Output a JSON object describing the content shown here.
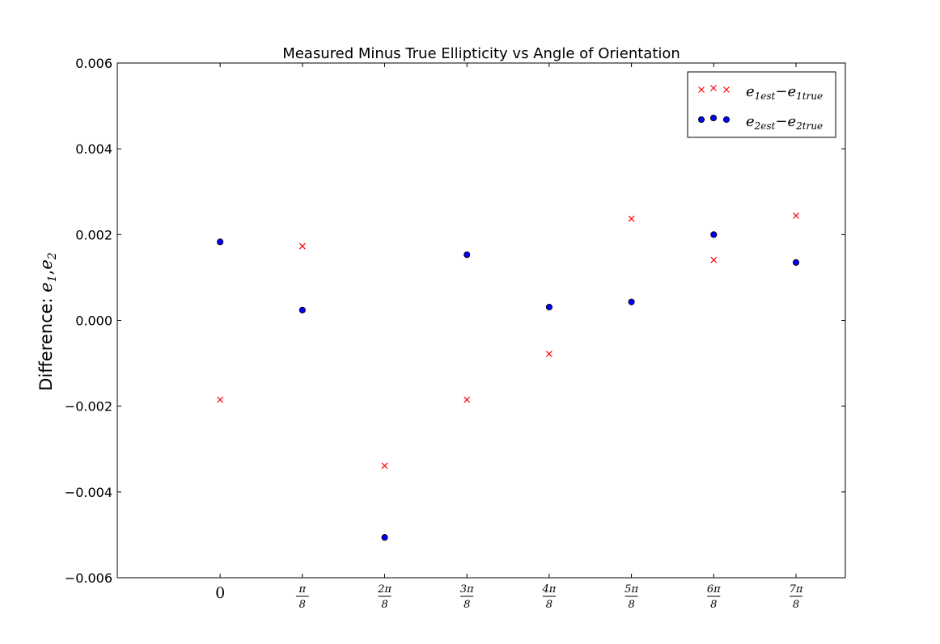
{
  "chart_data": {
    "type": "scatter",
    "title": "Measured Minus True Ellipticity vs Angle of Orientation",
    "ylabel": {
      "prefix": "Difference: ",
      "var1": "e",
      "sub1": "1",
      "sep": ",",
      "var2": "e",
      "sub2": "2"
    },
    "xlabel": "",
    "xlim": [
      -1.25,
      7.6
    ],
    "ylim": [
      -0.006,
      0.006
    ],
    "x_ticks": [
      {
        "value": 0,
        "label": "0"
      },
      {
        "value": 1,
        "numerator": "π",
        "denominator": "8"
      },
      {
        "value": 2,
        "numerator": "2π",
        "denominator": "8"
      },
      {
        "value": 3,
        "numerator": "3π",
        "denominator": "8"
      },
      {
        "value": 4,
        "numerator": "4π",
        "denominator": "8"
      },
      {
        "value": 5,
        "numerator": "5π",
        "denominator": "8"
      },
      {
        "value": 6,
        "numerator": "6π",
        "denominator": "8"
      },
      {
        "value": 7,
        "numerator": "7π",
        "denominator": "8"
      }
    ],
    "y_ticks": [
      {
        "value": 0.006,
        "label": "0.006"
      },
      {
        "value": 0.004,
        "label": "0.004"
      },
      {
        "value": 0.002,
        "label": "0.002"
      },
      {
        "value": 0.0,
        "label": "0.000"
      },
      {
        "value": -0.002,
        "label": "−0.002"
      },
      {
        "value": -0.004,
        "label": "−0.004"
      },
      {
        "value": -0.006,
        "label": "−0.006"
      }
    ],
    "legend_position": "top-right",
    "series": [
      {
        "name_parts": {
          "var": "e",
          "sub1": "1est",
          "minus": "−",
          "sub2": "1true"
        },
        "marker": "x",
        "color": "#ff0000",
        "x": [
          0,
          1,
          2,
          3,
          4,
          5,
          6,
          7
        ],
        "y": [
          -0.00185,
          0.00173,
          -0.00339,
          -0.00185,
          -0.00078,
          0.00237,
          0.00141,
          0.00244
        ]
      },
      {
        "name_parts": {
          "var": "e",
          "sub1": "2est",
          "minus": "−",
          "sub2": "2true"
        },
        "marker": "circle",
        "color": "#0000ff",
        "x": [
          0,
          1,
          2,
          3,
          4,
          5,
          6,
          7
        ],
        "y": [
          0.00183,
          0.00024,
          -0.00506,
          0.00153,
          0.00031,
          0.00043,
          0.002,
          0.00135
        ]
      }
    ]
  }
}
